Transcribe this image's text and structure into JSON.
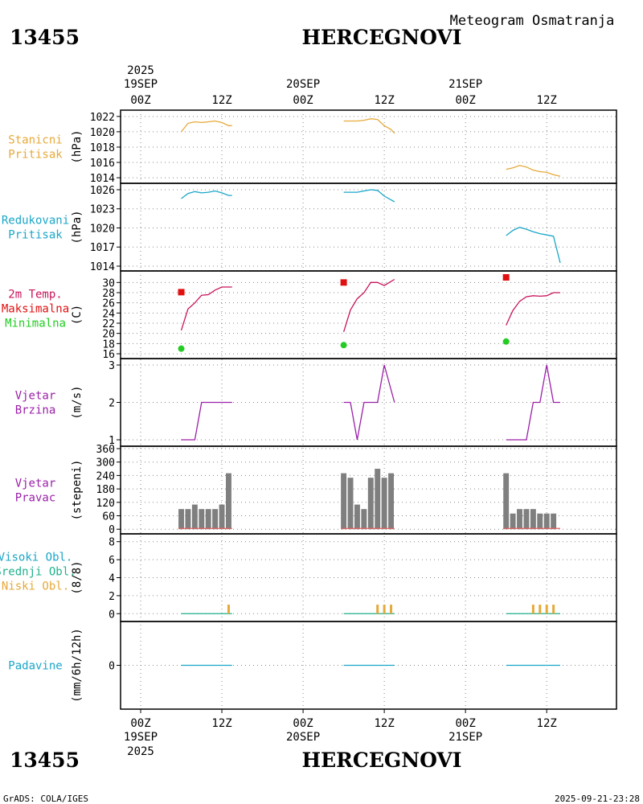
{
  "header": {
    "station_id": "13455",
    "station_name": "HERCEGNOVI",
    "subtitle": "Meteogram Osmatranja",
    "footer_left": "GrADS: COLA/IGES",
    "footer_right": "2025-09-21-23:28"
  },
  "time_axis": {
    "top_year": "2025",
    "labels": [
      {
        "t": 0,
        "hour": "00Z",
        "date": "19SEP",
        "year": "2025"
      },
      {
        "t": 12,
        "hour": "12Z"
      },
      {
        "t": 24,
        "hour": "00Z",
        "date": "20SEP"
      },
      {
        "t": 36,
        "hour": "12Z"
      },
      {
        "t": 48,
        "hour": "00Z",
        "date": "21SEP"
      },
      {
        "t": 60,
        "hour": "12Z"
      }
    ]
  },
  "colors": {
    "pressure": "#e6a93a",
    "reduced": "#1aa6c8",
    "temp": "#c8145a",
    "max": "#e01010",
    "min": "#22cc22",
    "wind": "#9b1fa8",
    "bars": "#7f7f7f",
    "dir_line": "#e06060",
    "high_cloud": "#1aa6c8",
    "mid_cloud": "#20b28c",
    "low_cloud": "#e6a93a",
    "precip": "#1aa6c8"
  },
  "chart_data": [
    {
      "type": "line",
      "id": "p1",
      "title_lines": [
        "Stanicni",
        "Pritisak"
      ],
      "title_color": "#e6a93a",
      "ylabel": "(hPa)",
      "ylim": [
        1013.8,
        1022.4
      ],
      "yticks": [
        1014,
        1016,
        1018,
        1020,
        1022
      ],
      "series": [
        {
          "name": "Stanicni Pritisak",
          "color": "#e6a93a",
          "segments": [
            [
              [
                6,
                1020
              ],
              [
                7,
                1021.1
              ],
              [
                8,
                1021.3
              ],
              [
                9,
                1021.2
              ],
              [
                10,
                1021.3
              ],
              [
                11,
                1021.4
              ],
              [
                12,
                1021.2
              ],
              [
                13,
                1020.8
              ],
              [
                13.5,
                1020.8
              ]
            ],
            [
              [
                30,
                1021.4
              ],
              [
                31,
                1021.4
              ],
              [
                32,
                1021.4
              ],
              [
                33,
                1021.5
              ],
              [
                34,
                1021.7
              ],
              [
                35,
                1021.6
              ],
              [
                36,
                1020.8
              ],
              [
                37,
                1020.3
              ],
              [
                37.5,
                1019.8
              ]
            ],
            [
              [
                54,
                1015.1
              ],
              [
                55,
                1015.3
              ],
              [
                56,
                1015.6
              ],
              [
                57,
                1015.4
              ],
              [
                58,
                1015
              ],
              [
                59,
                1014.8
              ],
              [
                60,
                1014.7
              ],
              [
                61,
                1014.4
              ],
              [
                62,
                1014.2
              ]
            ]
          ]
        }
      ]
    },
    {
      "type": "line",
      "id": "p2",
      "title_lines": [
        "Redukovani",
        "Pritisak"
      ],
      "title_color": "#1aa6c8",
      "ylabel": "(hPa)",
      "ylim": [
        1014,
        1026.5
      ],
      "yticks": [
        1014,
        1017,
        1020,
        1023,
        1026
      ],
      "series": [
        {
          "name": "Redukovani Pritisak",
          "color": "#1aa6c8",
          "segments": [
            [
              [
                6,
                1024.6
              ],
              [
                7,
                1025.4
              ],
              [
                8,
                1025.7
              ],
              [
                9,
                1025.5
              ],
              [
                10,
                1025.6
              ],
              [
                11,
                1025.8
              ],
              [
                12,
                1025.5
              ],
              [
                13,
                1025.1
              ],
              [
                13.5,
                1025.1
              ]
            ],
            [
              [
                30,
                1025.6
              ],
              [
                31,
                1025.6
              ],
              [
                32,
                1025.6
              ],
              [
                33,
                1025.8
              ],
              [
                34,
                1026
              ],
              [
                35,
                1025.9
              ],
              [
                36,
                1025
              ],
              [
                37,
                1024.4
              ],
              [
                37.5,
                1024.1
              ]
            ],
            [
              [
                54,
                1018.8
              ],
              [
                55,
                1019.6
              ],
              [
                56,
                1020.1
              ],
              [
                57,
                1019.8
              ],
              [
                58,
                1019.4
              ],
              [
                59,
                1019.1
              ],
              [
                60,
                1018.9
              ],
              [
                61,
                1018.7
              ],
              [
                62,
                1014.5
              ]
            ]
          ]
        }
      ]
    },
    {
      "type": "line",
      "id": "p3",
      "title_lines": [
        "2m Temp.",
        "Maksimalna",
        "Minimalna"
      ],
      "title_colors": [
        "#c8145a",
        "#e01010",
        "#22cc22"
      ],
      "ylabel": "(C)",
      "ylim": [
        16,
        31
      ],
      "yticks": [
        16,
        18,
        20,
        22,
        24,
        26,
        28,
        30
      ],
      "series": [
        {
          "name": "2m Temp.",
          "color": "#c8145a",
          "segments": [
            [
              [
                6,
                20.6
              ],
              [
                7,
                24.8
              ],
              [
                8,
                26
              ],
              [
                9,
                27.5
              ],
              [
                10,
                27.6
              ],
              [
                11,
                28.5
              ],
              [
                12,
                29.1
              ],
              [
                13.5,
                29.1
              ]
            ],
            [
              [
                30,
                20.3
              ],
              [
                31,
                24.6
              ],
              [
                32,
                26.8
              ],
              [
                33,
                28
              ],
              [
                34,
                30
              ],
              [
                35,
                30
              ],
              [
                36,
                29.4
              ],
              [
                37.5,
                30.6
              ]
            ],
            [
              [
                54,
                21.6
              ],
              [
                55,
                24.5
              ],
              [
                56,
                26.3
              ],
              [
                57,
                27.2
              ],
              [
                58,
                27.4
              ],
              [
                59,
                27.3
              ],
              [
                60,
                27.4
              ],
              [
                61,
                28
              ],
              [
                62,
                28
              ]
            ]
          ]
        }
      ],
      "markers": [
        {
          "name": "Maksimalna",
          "shape": "square",
          "color": "#e01010",
          "points": [
            [
              6,
              28.1
            ],
            [
              30,
              30
            ],
            [
              54,
              31
            ]
          ]
        },
        {
          "name": "Minimalna",
          "shape": "circle",
          "color": "#22cc22",
          "points": [
            [
              6,
              17
            ],
            [
              30,
              17.7
            ],
            [
              54,
              18.4
            ]
          ]
        }
      ]
    },
    {
      "type": "line",
      "id": "p4",
      "title_lines": [
        "Vjetar",
        "Brzina"
      ],
      "title_color": "#9b1fa8",
      "ylabel": "(m/s)",
      "ylim": [
        1,
        3
      ],
      "yticks": [
        1,
        2,
        3
      ],
      "series": [
        {
          "name": "Vjetar Brzina",
          "color": "#9b1fa8",
          "segments": [
            [
              [
                6,
                1
              ],
              [
                7,
                1
              ],
              [
                8,
                1
              ],
              [
                9,
                2
              ],
              [
                10,
                2
              ],
              [
                11,
                2
              ],
              [
                12,
                2
              ],
              [
                13.5,
                2
              ]
            ],
            [
              [
                30,
                2
              ],
              [
                31,
                2
              ],
              [
                32,
                1
              ],
              [
                33,
                2
              ],
              [
                34,
                2
              ],
              [
                35,
                2
              ],
              [
                36,
                3
              ],
              [
                37.5,
                2
              ]
            ],
            [
              [
                54,
                1
              ],
              [
                55,
                1
              ],
              [
                56,
                1
              ],
              [
                57,
                1
              ],
              [
                58,
                2
              ],
              [
                59,
                2
              ],
              [
                60,
                3
              ],
              [
                61,
                2
              ],
              [
                62,
                2
              ]
            ]
          ]
        }
      ]
    },
    {
      "type": "bar",
      "id": "p5",
      "title_lines": [
        "Vjetar",
        "Pravac"
      ],
      "title_color": "#9b1fa8",
      "ylabel": "(stepeni)",
      "ylim": [
        -10,
        360
      ],
      "yticks": [
        0,
        60,
        120,
        180,
        240,
        300,
        360
      ],
      "series": [
        {
          "name": "Vjetar Pravac",
          "color": "#7f7f7f",
          "points": [
            [
              6,
              90
            ],
            [
              7,
              90
            ],
            [
              8,
              110
            ],
            [
              9,
              90
            ],
            [
              10,
              90
            ],
            [
              11,
              90
            ],
            [
              12,
              110
            ],
            [
              13,
              250
            ],
            [
              30,
              250
            ],
            [
              31,
              230
            ],
            [
              32,
              110
            ],
            [
              33,
              90
            ],
            [
              34,
              230
            ],
            [
              35,
              270
            ],
            [
              36,
              230
            ],
            [
              37,
              250
            ],
            [
              54,
              250
            ],
            [
              55,
              70
            ],
            [
              56,
              90
            ],
            [
              57,
              90
            ],
            [
              58,
              90
            ],
            [
              59,
              70
            ],
            [
              60,
              70
            ],
            [
              61,
              70
            ]
          ]
        }
      ]
    },
    {
      "type": "bar",
      "id": "p6",
      "title_lines": [
        "Visoki Obl.",
        "Srednji Obl.",
        "Niski Obl."
      ],
      "title_colors": [
        "#1aa6c8",
        "#20b28c",
        "#e6a93a"
      ],
      "ylabel": "(8/8)",
      "ylim": [
        -0.6,
        8.6
      ],
      "yticks": [
        0,
        2,
        4,
        6,
        8
      ],
      "series": [
        {
          "name": "Niski Obl.",
          "color": "#e6a93a",
          "points": [
            [
              13,
              1
            ],
            [
              35,
              1
            ],
            [
              36,
              1
            ],
            [
              37,
              1
            ],
            [
              58,
              1
            ],
            [
              59,
              1
            ],
            [
              60,
              1
            ],
            [
              61,
              1
            ]
          ]
        },
        {
          "name": "Visoki Obl.",
          "color": "#1aa6c8",
          "points": []
        },
        {
          "name": "Srednji Obl.",
          "color": "#20b28c",
          "points": []
        }
      ],
      "baseline_segments": [
        [
          6,
          13.5
        ],
        [
          30,
          37.5
        ],
        [
          54,
          62
        ]
      ]
    },
    {
      "type": "line",
      "id": "p7",
      "title_lines": [
        "Padavine"
      ],
      "title_color": "#1aa6c8",
      "ylabel": "(mm/6h/12h)",
      "ylim": [
        -0.55,
        0.55
      ],
      "yticks": [
        0
      ],
      "series": [
        {
          "name": "Padavine",
          "color": "#1aa6c8",
          "segments": [
            [
              [
                6,
                0
              ],
              [
                13.5,
                0
              ]
            ],
            [
              [
                30,
                0
              ],
              [
                37.5,
                0
              ]
            ],
            [
              [
                54,
                0
              ],
              [
                62,
                0
              ]
            ]
          ]
        }
      ]
    }
  ]
}
